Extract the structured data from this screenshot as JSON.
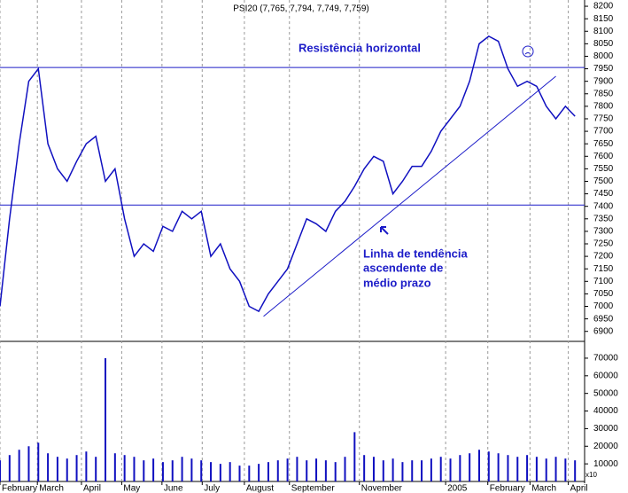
{
  "chart_data": {
    "type": "line",
    "title": "PSI20 (7,765, 7,794, 7,749, 7,759)",
    "color": "#1010c0",
    "x": [
      0,
      1,
      2,
      3,
      4,
      5,
      6,
      7,
      8,
      9,
      10,
      11,
      12,
      13,
      14,
      15,
      16,
      17,
      18,
      19,
      20,
      21,
      22,
      23,
      24,
      25,
      26,
      27,
      28,
      29,
      30,
      31,
      32,
      33,
      34,
      35,
      36,
      37,
      38,
      39,
      40,
      41,
      42,
      43,
      44,
      45,
      46,
      47,
      48,
      49,
      50,
      51,
      52,
      53,
      54,
      55,
      56,
      57,
      58,
      59,
      60
    ],
    "values": [
      7000,
      7350,
      7650,
      7900,
      7950,
      7650,
      7550,
      7500,
      7580,
      7650,
      7680,
      7500,
      7550,
      7350,
      7200,
      7250,
      7220,
      7320,
      7300,
      7380,
      7350,
      7380,
      7200,
      7250,
      7150,
      7100,
      7000,
      6980,
      7050,
      7100,
      7150,
      7250,
      7350,
      7330,
      7300,
      7380,
      7420,
      7480,
      7550,
      7600,
      7580,
      7450,
      7500,
      7560,
      7560,
      7620,
      7700,
      7750,
      7800,
      7900,
      8050,
      8080,
      8060,
      7950,
      7880,
      7900,
      7880,
      7800,
      7750,
      7800,
      7760
    ],
    "volume": [
      12000,
      15000,
      18000,
      20000,
      22000,
      16000,
      14000,
      13000,
      15000,
      17000,
      14000,
      70000,
      16000,
      15000,
      14000,
      12000,
      13000,
      11000,
      12000,
      14000,
      13000,
      12000,
      11000,
      10000,
      11000,
      9000,
      9000,
      10000,
      11000,
      12000,
      13000,
      14000,
      12000,
      13000,
      12000,
      11000,
      14000,
      28000,
      15000,
      14000,
      12000,
      13000,
      11000,
      12000,
      12000,
      13000,
      14000,
      13000,
      15000,
      16000,
      18000,
      17000,
      16000,
      15000,
      14000,
      15000,
      14000,
      13000,
      14000,
      13000,
      12000
    ],
    "volume_color": "#1010c0",
    "xlim": [
      0,
      61
    ],
    "xticks": [
      {
        "value": 0,
        "label": "February"
      },
      {
        "value": 3.9,
        "label": "March"
      },
      {
        "value": 8.5,
        "label": "April"
      },
      {
        "value": 12.7,
        "label": "May"
      },
      {
        "value": 16.9,
        "label": "June"
      },
      {
        "value": 21.1,
        "label": "July"
      },
      {
        "value": 25.5,
        "label": "August"
      },
      {
        "value": 30.2,
        "label": "September"
      },
      {
        "value": 37.5,
        "label": "November"
      },
      {
        "value": 46.5,
        "label": "2005"
      },
      {
        "value": 50.9,
        "label": "February"
      },
      {
        "value": 55.3,
        "label": "March"
      },
      {
        "value": 59.3,
        "label": "April"
      }
    ],
    "ylim": [
      6860,
      8225
    ],
    "yticks": [
      6900,
      6950,
      7000,
      7050,
      7100,
      7150,
      7200,
      7250,
      7300,
      7350,
      7400,
      7450,
      7500,
      7550,
      7600,
      7650,
      7700,
      7750,
      7800,
      7850,
      7900,
      7950,
      8000,
      8050,
      8100,
      8150,
      8200
    ],
    "y2lim": [
      0,
      74000
    ],
    "y2ticks": [
      10000,
      20000,
      30000,
      40000,
      50000,
      60000,
      70000
    ],
    "volume_unit_label": "x10",
    "hlines": [
      7955,
      7405
    ],
    "trendline": {
      "x": [
        27.5,
        58
      ],
      "y": [
        6960,
        7920
      ]
    },
    "annotations": [
      "Resistência horizontal",
      "Linha de tendência",
      "ascendente de",
      "médio prazo"
    ],
    "grid": true
  }
}
